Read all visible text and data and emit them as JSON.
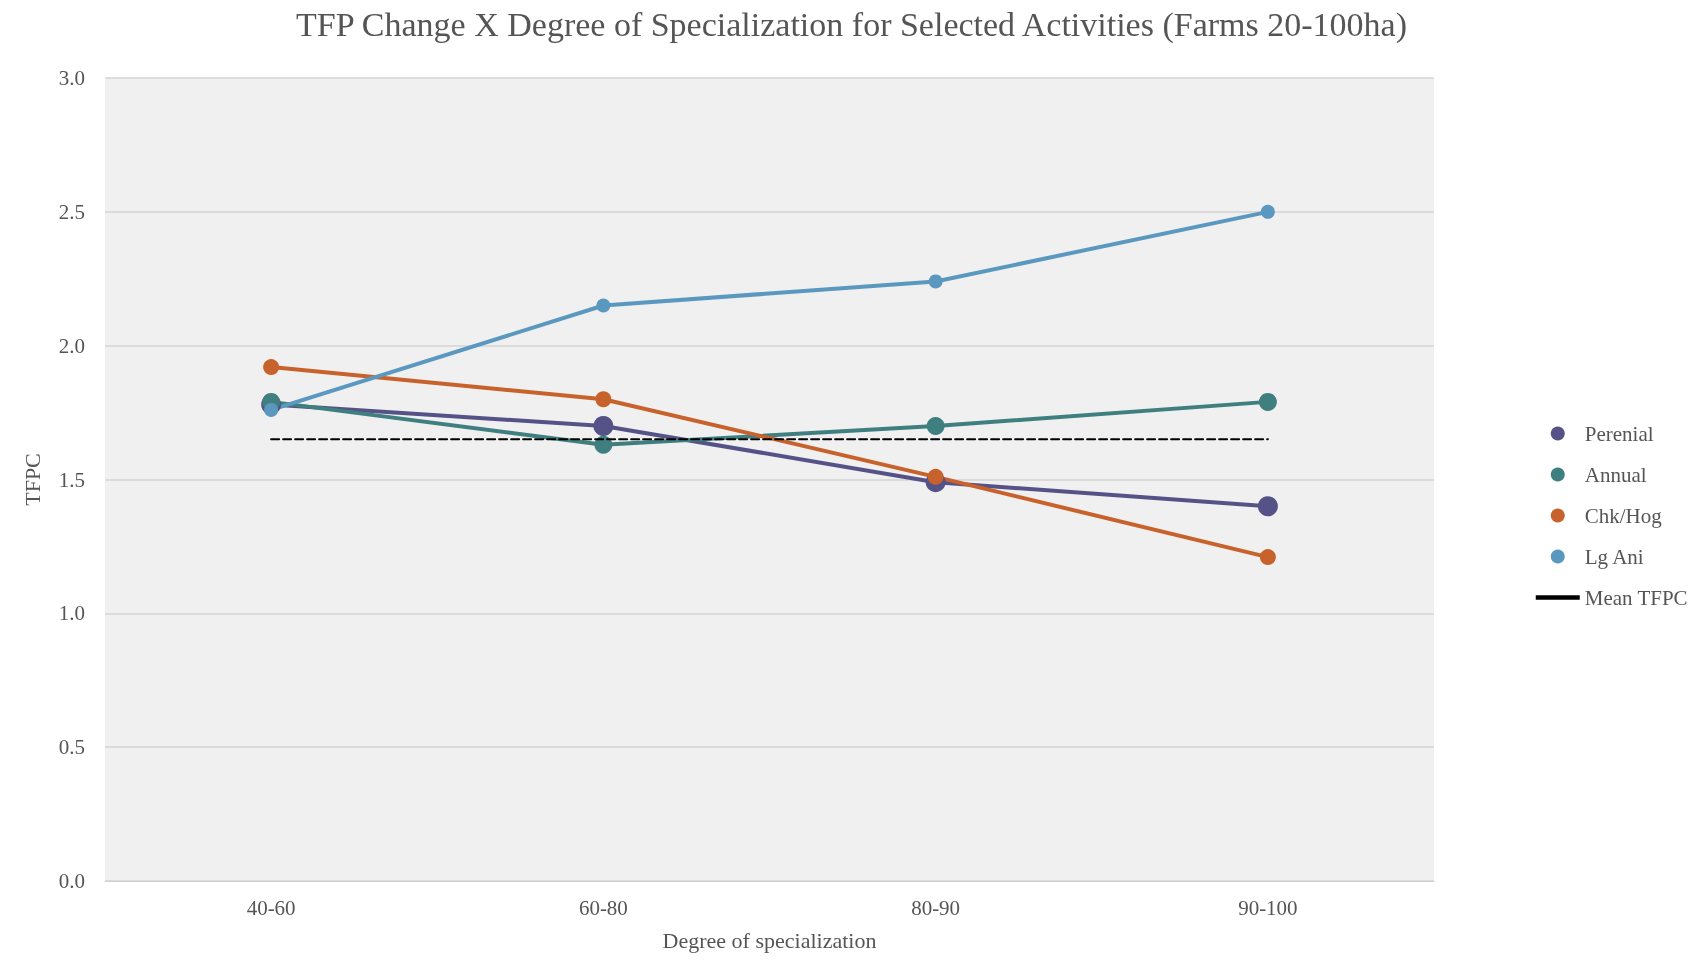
{
  "chart_data": {
    "type": "line",
    "title": "TFP Change X Degree of Specialization for Selected Activities (Farms 20-100ha)",
    "xlabel": "Degree of specialization",
    "ylabel": "TFPC",
    "categories": [
      "40-60",
      "60-80",
      "80-90",
      "90-100"
    ],
    "series": [
      {
        "name": "Perenial",
        "color": "#555287",
        "values": [
          1.78,
          1.7,
          1.49,
          1.4
        ]
      },
      {
        "name": "Annual",
        "color": "#3f7f80",
        "values": [
          1.79,
          1.63,
          1.7,
          1.79
        ]
      },
      {
        "name": "Chk/Hog",
        "color": "#c8622c",
        "values": [
          1.92,
          1.8,
          1.51,
          1.21
        ]
      },
      {
        "name": "Lg Ani",
        "color": "#5b98bf",
        "values": [
          1.76,
          2.15,
          2.24,
          2.5
        ]
      },
      {
        "name": "Mean TFPC",
        "color": "#000000",
        "values": [
          1.65,
          1.65,
          1.65,
          1.65
        ],
        "line_style": "dashed",
        "marker": "none"
      }
    ],
    "ylim": [
      0,
      3
    ],
    "yticks": [
      {
        "value": 0,
        "label": "0.0"
      },
      {
        "value": 0.5,
        "label": "0.5"
      },
      {
        "value": 1,
        "label": "1.0"
      },
      {
        "value": 1.5,
        "label": "1.5"
      },
      {
        "value": 2,
        "label": "2.0"
      },
      {
        "value": 2.5,
        "label": "2.5"
      },
      {
        "value": 3,
        "label": "3.0"
      }
    ],
    "grid": "y",
    "legend": "right",
    "marker": "circle",
    "line_style": "solid"
  }
}
